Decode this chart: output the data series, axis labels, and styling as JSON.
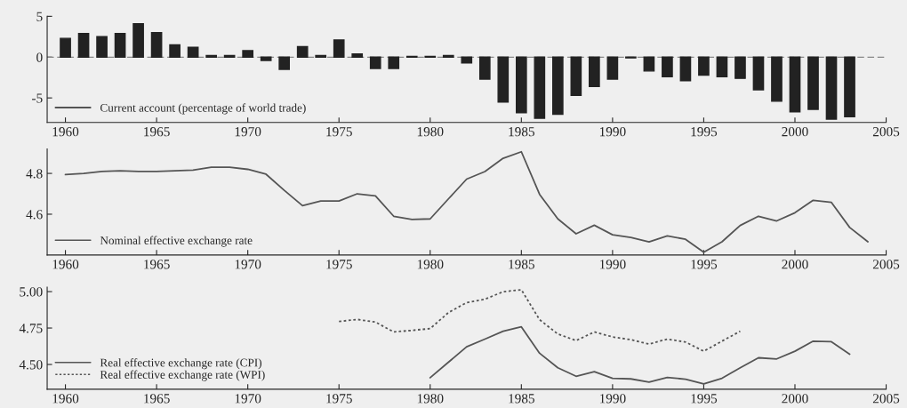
{
  "chart_data": [
    {
      "type": "bar",
      "x": [
        1960,
        1961,
        1962,
        1963,
        1964,
        1965,
        1966,
        1967,
        1968,
        1969,
        1970,
        1971,
        1972,
        1973,
        1974,
        1975,
        1976,
        1977,
        1978,
        1979,
        1980,
        1981,
        1982,
        1983,
        1984,
        1985,
        1986,
        1987,
        1988,
        1989,
        1990,
        1991,
        1992,
        1993,
        1994,
        1995,
        1996,
        1997,
        1998,
        1999,
        2000,
        2001,
        2002,
        2003
      ],
      "series": [
        {
          "name": "Current account (percentage of world trade)",
          "color": "#222222",
          "values": [
            2.3,
            2.9,
            2.5,
            2.9,
            4.1,
            3.0,
            1.5,
            1.2,
            0.2,
            0.2,
            0.8,
            -0.4,
            -1.5,
            1.3,
            0.2,
            2.1,
            0.4,
            -1.4,
            -1.4,
            0.1,
            0.1,
            0.2,
            -0.7,
            -2.7,
            -5.5,
            -6.8,
            -7.5,
            -7.0,
            -4.7,
            -3.6,
            -2.7,
            -0.1,
            -1.7,
            -2.4,
            -2.9,
            -2.2,
            -2.4,
            -2.6,
            -4.0,
            -5.4,
            -6.7,
            -6.4,
            -7.6,
            -7.3
          ]
        }
      ],
      "xlim": [
        1959,
        2005
      ],
      "xticks": [
        1960,
        1965,
        1970,
        1975,
        1980,
        1985,
        1990,
        1995,
        2000,
        2005
      ],
      "ylim": [
        -8,
        5
      ],
      "yticks": [
        -5,
        0,
        5
      ],
      "ref_lines": [
        {
          "axis": "y",
          "value": 0,
          "color": "#888888",
          "line_style": "dashed"
        }
      ],
      "legend": "bottom left",
      "grid": false
    },
    {
      "type": "line",
      "x": [
        1960,
        1961,
        1962,
        1963,
        1964,
        1965,
        1966,
        1967,
        1968,
        1969,
        1970,
        1971,
        1972,
        1973,
        1974,
        1975,
        1976,
        1977,
        1978,
        1979,
        1980,
        1981,
        1982,
        1983,
        1984,
        1985,
        1986,
        1987,
        1988,
        1989,
        1990,
        1991,
        1992,
        1993,
        1994,
        1995,
        1996,
        1997,
        1998,
        1999,
        2000,
        2001,
        2002,
        2003,
        2004
      ],
      "series": [
        {
          "name": "Nominal effective exchange rate",
          "color": "#555555",
          "line_style": "solid",
          "values": [
            4.794,
            4.8,
            4.81,
            4.813,
            4.81,
            4.81,
            4.813,
            4.816,
            4.83,
            4.83,
            4.82,
            4.796,
            4.717,
            4.642,
            4.665,
            4.665,
            4.7,
            4.69,
            4.59,
            4.574,
            4.577,
            4.675,
            4.772,
            4.809,
            4.874,
            4.906,
            4.697,
            4.577,
            4.504,
            4.546,
            4.499,
            4.486,
            4.464,
            4.494,
            4.477,
            4.414,
            4.465,
            4.545,
            4.59,
            4.567,
            4.607,
            4.668,
            4.658,
            4.535,
            4.465
          ]
        }
      ],
      "xlim": [
        1959,
        2005
      ],
      "xticks": [
        1960,
        1965,
        1970,
        1975,
        1980,
        1985,
        1990,
        1995,
        2000,
        2005
      ],
      "ylim": [
        4.4,
        4.92
      ],
      "yticks": [
        4.6,
        4.8
      ],
      "legend": "bottom left",
      "grid": false
    },
    {
      "type": "line",
      "series": [
        {
          "name": "Real effective exchange rate (CPI)",
          "color": "#555555",
          "line_style": "solid",
          "x": [
            1980,
            1981,
            1982,
            1983,
            1984,
            1985,
            1986,
            1987,
            1988,
            1989,
            1990,
            1991,
            1992,
            1993,
            1994,
            1995,
            1996,
            1997,
            1998,
            1999,
            2000,
            2001,
            2002,
            2003
          ],
          "values": [
            4.409,
            4.515,
            4.621,
            4.674,
            4.728,
            4.758,
            4.577,
            4.477,
            4.419,
            4.45,
            4.405,
            4.401,
            4.379,
            4.411,
            4.399,
            4.366,
            4.405,
            4.477,
            4.546,
            4.538,
            4.591,
            4.66,
            4.656,
            4.57
          ]
        },
        {
          "name": "Real effective exchange rate (WPI)",
          "color": "#555555",
          "line_style": "dotted",
          "x": [
            1975,
            1976,
            1977,
            1978,
            1979,
            1980,
            1981,
            1982,
            1983,
            1984,
            1985,
            1986,
            1987,
            1988,
            1989,
            1990,
            1991,
            1992,
            1993,
            1994,
            1995,
            1996,
            1997
          ],
          "values": [
            4.795,
            4.809,
            4.791,
            4.723,
            4.734,
            4.746,
            4.856,
            4.925,
            4.948,
            4.999,
            5.013,
            4.807,
            4.709,
            4.664,
            4.723,
            4.689,
            4.67,
            4.64,
            4.674,
            4.654,
            4.591,
            4.66,
            4.728
          ]
        }
      ],
      "xlim": [
        1959,
        2005
      ],
      "xticks": [
        1960,
        1965,
        1970,
        1975,
        1980,
        1985,
        1990,
        1995,
        2000,
        2005
      ],
      "ylim": [
        4.33,
        5.03
      ],
      "yticks": [
        {
          "value": 4.5,
          "label": "4.50"
        },
        {
          "value": 4.75,
          "label": "4.75"
        },
        {
          "value": 5.0,
          "label": "5.00"
        }
      ],
      "legend": "bottom left",
      "grid": false
    }
  ]
}
